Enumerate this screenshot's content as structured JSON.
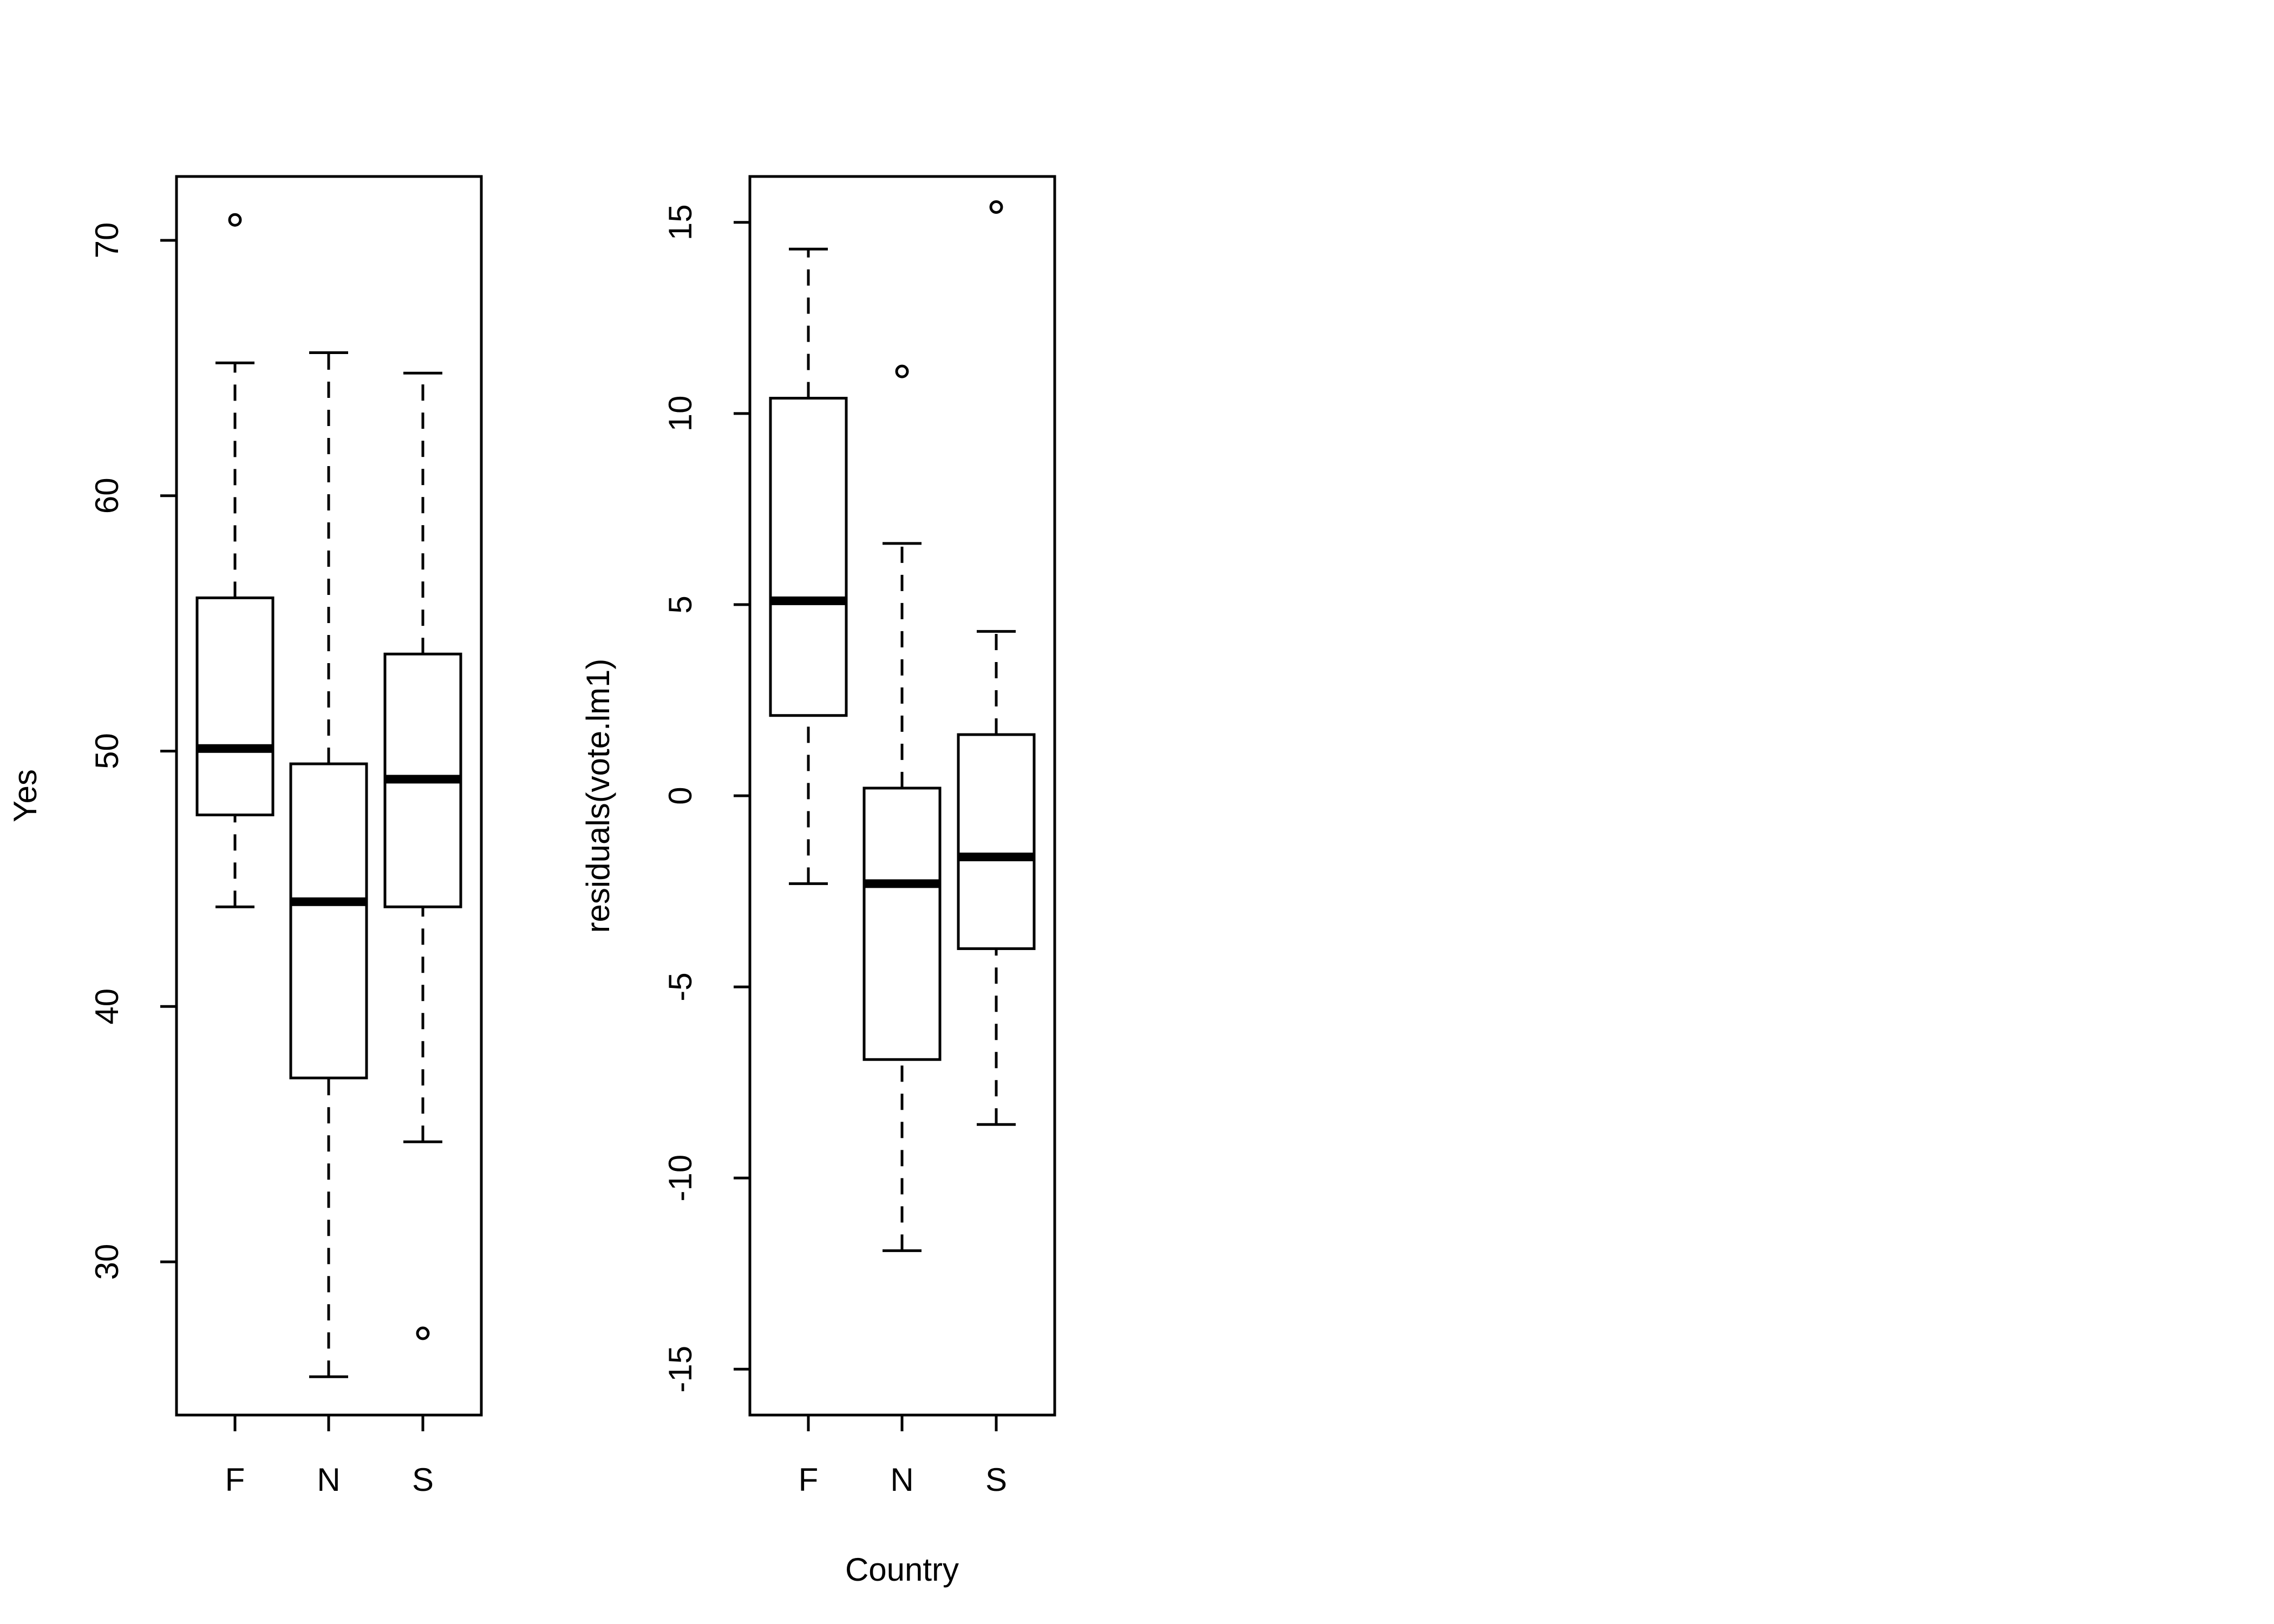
{
  "chart_data": [
    {
      "type": "box",
      "xlabel": "",
      "ylabel": "Yes",
      "ylim": [
        24,
        72.5
      ],
      "yticks": [
        30,
        40,
        50,
        60,
        70
      ],
      "categories": [
        "F",
        "N",
        "S"
      ],
      "boxes": [
        {
          "category": "F",
          "whisker_low": 43.9,
          "q1": 47.5,
          "median": 50.1,
          "q3": 56.0,
          "whisker_high": 65.2,
          "outliers": [
            70.8
          ]
        },
        {
          "category": "N",
          "whisker_low": 25.5,
          "q1": 37.2,
          "median": 44.1,
          "q3": 49.5,
          "whisker_high": 65.6,
          "outliers": []
        },
        {
          "category": "S",
          "whisker_low": 34.7,
          "q1": 43.9,
          "median": 48.9,
          "q3": 53.8,
          "whisker_high": 64.8,
          "outliers": [
            27.2
          ]
        }
      ]
    },
    {
      "type": "box",
      "xlabel": "Country",
      "ylabel": "residuals(vote.lm1)",
      "ylim": [
        -16.2,
        16.2
      ],
      "yticks": [
        -15,
        -10,
        -5,
        0,
        5,
        10,
        15
      ],
      "categories": [
        "F",
        "N",
        "S"
      ],
      "boxes": [
        {
          "category": "F",
          "whisker_low": -2.3,
          "q1": 2.1,
          "median": 5.1,
          "q3": 10.4,
          "whisker_high": 14.3,
          "outliers": []
        },
        {
          "category": "N",
          "whisker_low": -11.9,
          "q1": -6.9,
          "median": -2.3,
          "q3": 0.2,
          "whisker_high": 6.6,
          "outliers": [
            11.1
          ]
        },
        {
          "category": "S",
          "whisker_low": -8.6,
          "q1": -4.0,
          "median": -1.6,
          "q3": 1.6,
          "whisker_high": 4.3,
          "outliers": [
            15.4
          ]
        }
      ]
    }
  ]
}
